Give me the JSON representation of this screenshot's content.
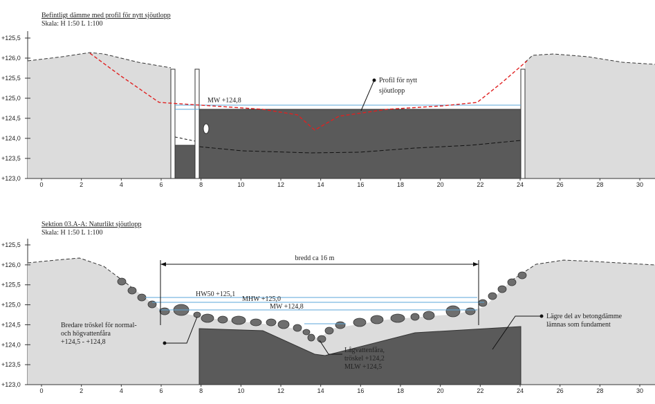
{
  "panels": [
    {
      "title": "Befintligt dämme med profil för nytt sjöutlopp",
      "scale": "Skala: H 1:50 L 1:100",
      "y_labels": [
        "+125,5",
        "+126,0",
        "+125,5",
        "+125,0",
        "+124,5",
        "+124,0",
        "+123,5",
        "+123,0"
      ],
      "x_labels": [
        "0",
        "2",
        "4",
        "6",
        "8",
        "10",
        "12",
        "14",
        "16",
        "18",
        "20",
        "22",
        "24",
        "26",
        "28",
        "30"
      ],
      "annotations": [
        "MW +124,8",
        "Profil för nytt",
        "sjöutlopp"
      ]
    },
    {
      "title": "Sektion 03.A-A: Naturlikt sjöutlopp",
      "scale": "Skala: H 1:50 L 1:100",
      "y_labels": [
        "+125,5",
        "+126,0",
        "+125,5",
        "+125,0",
        "+124,5",
        "+124,0",
        "+123,5",
        "+123,0"
      ],
      "x_labels": [
        "0",
        "2",
        "4",
        "6",
        "8",
        "10",
        "12",
        "14",
        "16",
        "18",
        "20",
        "22",
        "24",
        "26",
        "28",
        "30"
      ],
      "annotations": [
        "bredd ca 16 m",
        "HW50 +125,1",
        "MHW +125,0",
        "MW +124,8",
        "Bredare tröskel för  normal-",
        "och högvattenfåra",
        "+124,5 - +124,8",
        "Lågvattenfåra,",
        "tröskel +124,2",
        "MLW +124,5",
        "Lägre del av betongdämme",
        "lämnas som fundament"
      ]
    }
  ]
}
